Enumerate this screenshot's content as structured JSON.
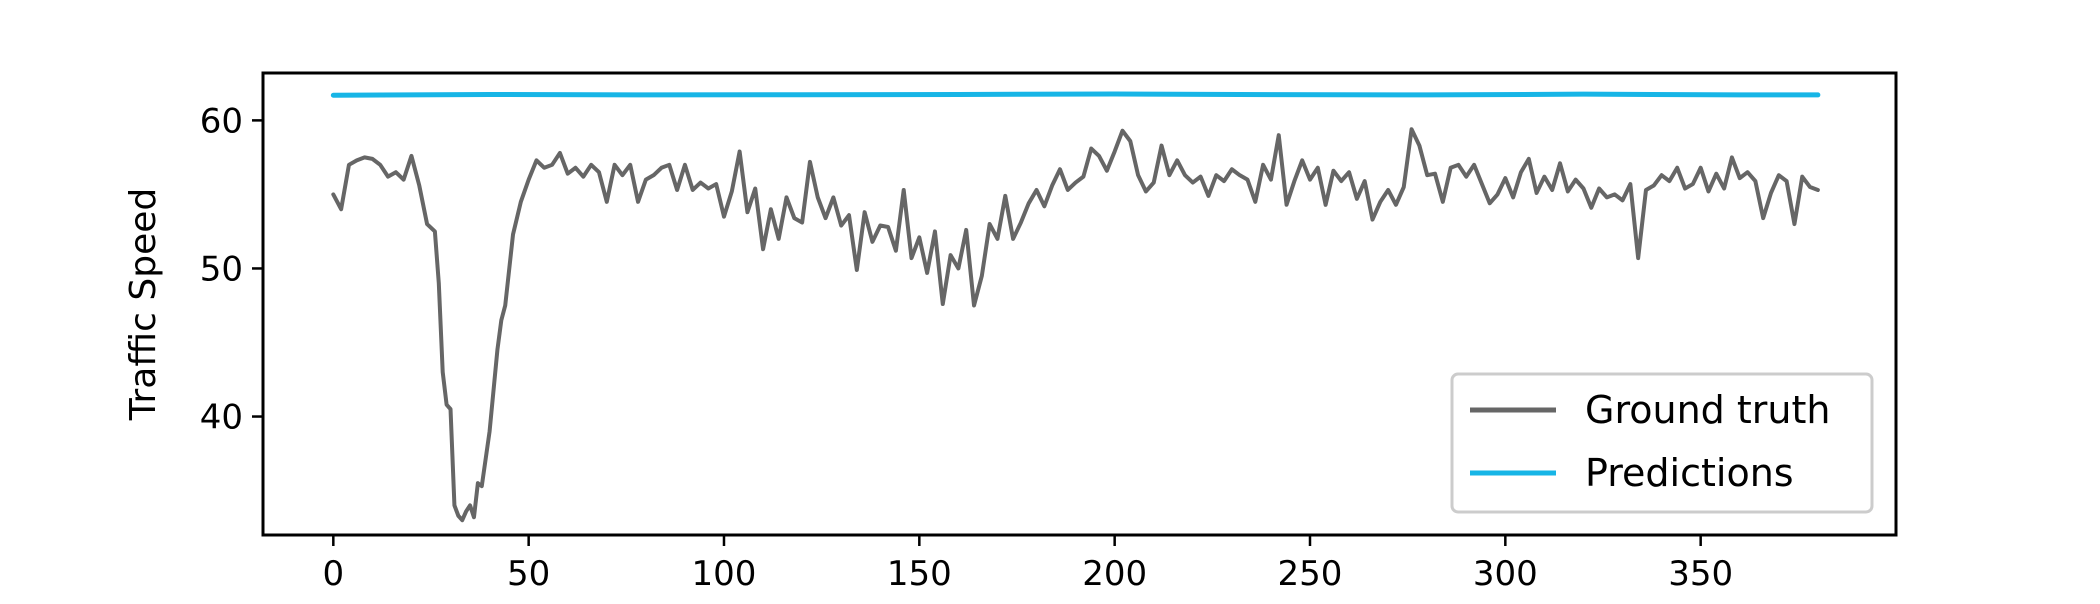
{
  "chart_data": {
    "type": "line",
    "title": "",
    "xlabel": "",
    "ylabel": "Traffic Speed",
    "xlim": [
      -18,
      400
    ],
    "ylim": [
      32,
      63.2
    ],
    "x_ticks": [
      0,
      50,
      100,
      150,
      200,
      250,
      300,
      350
    ],
    "y_ticks": [
      40,
      50,
      60
    ],
    "grid": false,
    "legend": {
      "placement": "lower-right",
      "entries": [
        "Ground truth",
        "Predictions"
      ]
    },
    "series": [
      {
        "name": "Ground truth",
        "color": "#666666",
        "points": [
          [
            0,
            55
          ],
          [
            2,
            54
          ],
          [
            4,
            57
          ],
          [
            6,
            57.3
          ],
          [
            8,
            57.5
          ],
          [
            10,
            57.4
          ],
          [
            12,
            57
          ],
          [
            14,
            56.2
          ],
          [
            16,
            56.5
          ],
          [
            18,
            56
          ],
          [
            20,
            57.6
          ],
          [
            22,
            55.6
          ],
          [
            24,
            53
          ],
          [
            26,
            52.5
          ],
          [
            27,
            49
          ],
          [
            28,
            43
          ],
          [
            29,
            40.8
          ],
          [
            30,
            40.5
          ],
          [
            31,
            34
          ],
          [
            32,
            33.3
          ],
          [
            33,
            33
          ],
          [
            34,
            33.6
          ],
          [
            35,
            34
          ],
          [
            36,
            33.2
          ],
          [
            37,
            35.5
          ],
          [
            38,
            35.3
          ],
          [
            40,
            39
          ],
          [
            42,
            44.5
          ],
          [
            43,
            46.5
          ],
          [
            44,
            47.5
          ],
          [
            46,
            52.3
          ],
          [
            48,
            54.5
          ],
          [
            50,
            56
          ],
          [
            52,
            57.3
          ],
          [
            54,
            56.8
          ],
          [
            56,
            57
          ],
          [
            58,
            57.8
          ],
          [
            60,
            56.4
          ],
          [
            62,
            56.8
          ],
          [
            64,
            56.2
          ],
          [
            66,
            57
          ],
          [
            68,
            56.5
          ],
          [
            70,
            54.5
          ],
          [
            72,
            57
          ],
          [
            74,
            56.3
          ],
          [
            76,
            57
          ],
          [
            78,
            54.5
          ],
          [
            80,
            56
          ],
          [
            82,
            56.3
          ],
          [
            84,
            56.8
          ],
          [
            86,
            57
          ],
          [
            88,
            55.3
          ],
          [
            90,
            57
          ],
          [
            92,
            55.3
          ],
          [
            94,
            55.8
          ],
          [
            96,
            55.4
          ],
          [
            98,
            55.7
          ],
          [
            100,
            53.5
          ],
          [
            102,
            55.2
          ],
          [
            104,
            57.9
          ],
          [
            106,
            53.8
          ],
          [
            108,
            55.4
          ],
          [
            110,
            51.3
          ],
          [
            112,
            54
          ],
          [
            114,
            52
          ],
          [
            116,
            54.8
          ],
          [
            118,
            53.4
          ],
          [
            120,
            53.1
          ],
          [
            122,
            57.2
          ],
          [
            124,
            54.8
          ],
          [
            126,
            53.4
          ],
          [
            128,
            54.8
          ],
          [
            130,
            52.9
          ],
          [
            132,
            53.6
          ],
          [
            134,
            49.9
          ],
          [
            136,
            53.8
          ],
          [
            138,
            51.8
          ],
          [
            140,
            52.9
          ],
          [
            142,
            52.8
          ],
          [
            144,
            51.2
          ],
          [
            146,
            55.3
          ],
          [
            148,
            50.7
          ],
          [
            150,
            52.1
          ],
          [
            152,
            49.7
          ],
          [
            154,
            52.5
          ],
          [
            156,
            47.6
          ],
          [
            158,
            50.9
          ],
          [
            160,
            50
          ],
          [
            162,
            52.6
          ],
          [
            164,
            47.5
          ],
          [
            166,
            49.5
          ],
          [
            168,
            53
          ],
          [
            170,
            52
          ],
          [
            172,
            54.9
          ],
          [
            174,
            52
          ],
          [
            176,
            53.1
          ],
          [
            178,
            54.4
          ],
          [
            180,
            55.3
          ],
          [
            182,
            54.2
          ],
          [
            184,
            55.6
          ],
          [
            186,
            56.7
          ],
          [
            188,
            55.3
          ],
          [
            190,
            55.8
          ],
          [
            192,
            56.2
          ],
          [
            194,
            58.1
          ],
          [
            196,
            57.6
          ],
          [
            198,
            56.6
          ],
          [
            200,
            57.9
          ],
          [
            202,
            59.3
          ],
          [
            204,
            58.6
          ],
          [
            206,
            56.3
          ],
          [
            208,
            55.2
          ],
          [
            210,
            55.8
          ],
          [
            212,
            58.3
          ],
          [
            214,
            56.3
          ],
          [
            216,
            57.3
          ],
          [
            218,
            56.3
          ],
          [
            220,
            55.8
          ],
          [
            222,
            56.2
          ],
          [
            224,
            54.9
          ],
          [
            226,
            56.3
          ],
          [
            228,
            55.9
          ],
          [
            230,
            56.7
          ],
          [
            232,
            56.3
          ],
          [
            234,
            56
          ],
          [
            236,
            54.5
          ],
          [
            238,
            57
          ],
          [
            240,
            56
          ],
          [
            242,
            59
          ],
          [
            244,
            54.3
          ],
          [
            246,
            55.9
          ],
          [
            248,
            57.3
          ],
          [
            250,
            56
          ],
          [
            252,
            56.8
          ],
          [
            254,
            54.3
          ],
          [
            256,
            56.6
          ],
          [
            258,
            55.9
          ],
          [
            260,
            56.5
          ],
          [
            262,
            54.7
          ],
          [
            264,
            55.9
          ],
          [
            266,
            53.3
          ],
          [
            268,
            54.5
          ],
          [
            270,
            55.3
          ],
          [
            272,
            54.3
          ],
          [
            274,
            55.5
          ],
          [
            276,
            59.4
          ],
          [
            278,
            58.3
          ],
          [
            280,
            56.3
          ],
          [
            282,
            56.4
          ],
          [
            284,
            54.5
          ],
          [
            286,
            56.8
          ],
          [
            288,
            57
          ],
          [
            290,
            56.2
          ],
          [
            292,
            57
          ],
          [
            294,
            55.7
          ],
          [
            296,
            54.4
          ],
          [
            298,
            55
          ],
          [
            300,
            56.1
          ],
          [
            302,
            54.8
          ],
          [
            304,
            56.5
          ],
          [
            306,
            57.4
          ],
          [
            308,
            55.1
          ],
          [
            310,
            56.2
          ],
          [
            312,
            55.3
          ],
          [
            314,
            57.1
          ],
          [
            316,
            55.2
          ],
          [
            318,
            56
          ],
          [
            320,
            55.4
          ],
          [
            322,
            54.1
          ],
          [
            324,
            55.4
          ],
          [
            326,
            54.8
          ],
          [
            328,
            55
          ],
          [
            330,
            54.6
          ],
          [
            332,
            55.7
          ],
          [
            334,
            50.7
          ],
          [
            336,
            55.3
          ],
          [
            338,
            55.6
          ],
          [
            340,
            56.3
          ],
          [
            342,
            55.9
          ],
          [
            344,
            56.8
          ],
          [
            346,
            55.4
          ],
          [
            348,
            55.7
          ],
          [
            350,
            56.8
          ],
          [
            352,
            55.2
          ],
          [
            354,
            56.4
          ],
          [
            356,
            55.4
          ],
          [
            358,
            57.5
          ],
          [
            360,
            56.1
          ],
          [
            362,
            56.5
          ],
          [
            364,
            55.9
          ],
          [
            366,
            53.4
          ],
          [
            368,
            55.1
          ],
          [
            370,
            56.3
          ],
          [
            372,
            55.9
          ],
          [
            374,
            53
          ],
          [
            376,
            56.2
          ],
          [
            378,
            55.5
          ],
          [
            380,
            55.3
          ]
        ]
      },
      {
        "name": "Predictions",
        "color": "#17b5e6",
        "points": [
          [
            0,
            61.7
          ],
          [
            40,
            61.75
          ],
          [
            80,
            61.72
          ],
          [
            120,
            61.73
          ],
          [
            160,
            61.75
          ],
          [
            200,
            61.78
          ],
          [
            240,
            61.74
          ],
          [
            280,
            61.72
          ],
          [
            320,
            61.77
          ],
          [
            360,
            61.72
          ],
          [
            380,
            61.72
          ]
        ]
      }
    ]
  }
}
